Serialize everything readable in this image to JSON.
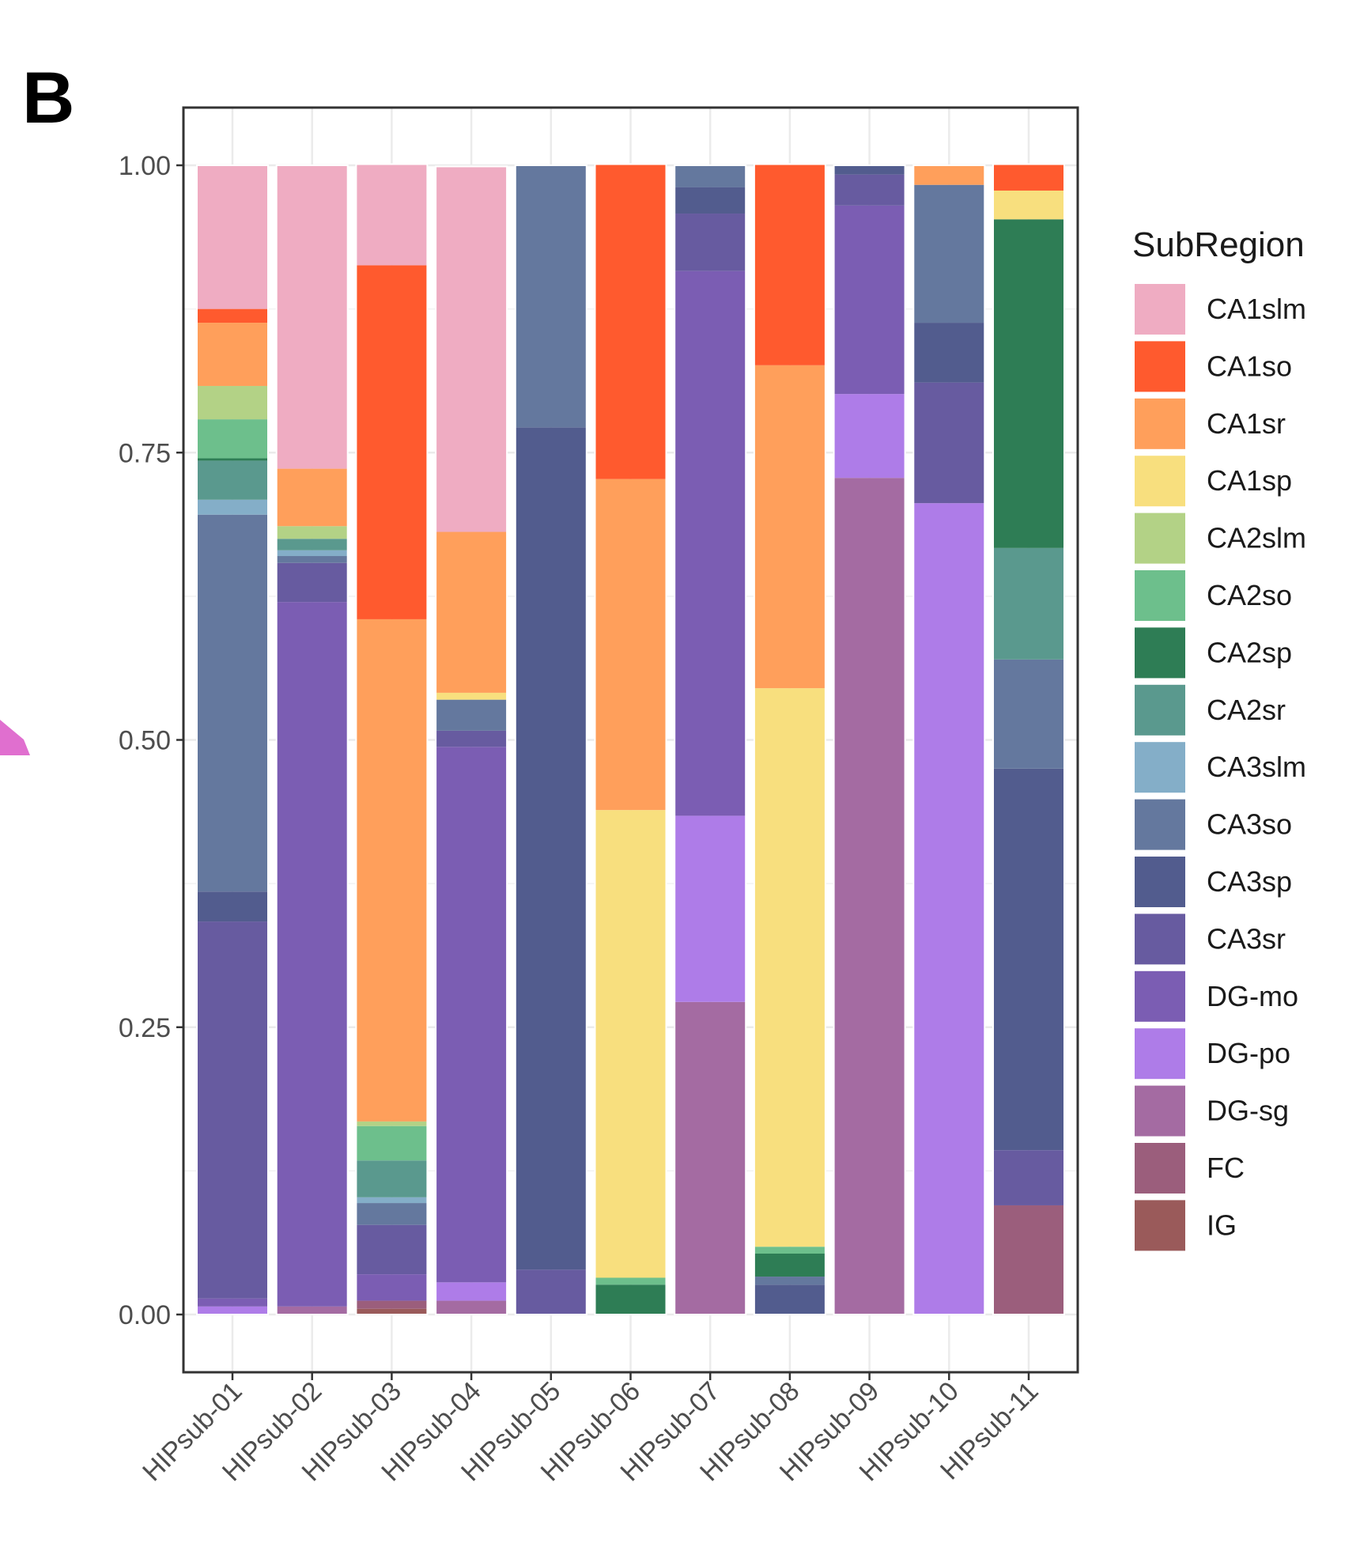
{
  "panel_label": "B",
  "chart_data": {
    "type": "bar",
    "stacked": true,
    "title": "",
    "xlabel": "",
    "ylabel": "",
    "ylim": [
      0,
      1
    ],
    "yticks": [
      "0.00",
      "0.25",
      "0.50",
      "0.75",
      "1.00"
    ],
    "ytick_values": [
      0,
      0.25,
      0.5,
      0.75,
      1.0
    ],
    "grid": true,
    "legend_title": "SubRegion",
    "legend_position": "right",
    "categories": [
      "HIPsub-01",
      "HIPsub-02",
      "HIPsub-03",
      "HIPsub-04",
      "HIPsub-05",
      "HIPsub-06",
      "HIPsub-07",
      "HIPsub-08",
      "HIPsub-09",
      "HIPsub-10",
      "HIPsub-11"
    ],
    "series": [
      {
        "name": "CA1slm",
        "color": "#EFACC2",
        "values": [
          0.125,
          0.264,
          0.088,
          0.318,
          0,
          0,
          0,
          0,
          0,
          0,
          0
        ]
      },
      {
        "name": "CA1so",
        "color": "#FF5A2E",
        "values": [
          0.012,
          0,
          0.308,
          0,
          0,
          0.274,
          0,
          0.175,
          0,
          0,
          0.023
        ]
      },
      {
        "name": "CA1sr",
        "color": "#FF9F5B",
        "values": [
          0.055,
          0.05,
          0.437,
          0.14,
          0,
          0.288,
          0,
          0.281,
          0,
          0.017,
          0
        ]
      },
      {
        "name": "CA1sp",
        "color": "#F8DF7E",
        "values": [
          0,
          0,
          0,
          0.006,
          0,
          0.407,
          0,
          0.486,
          0,
          0,
          0.025
        ]
      },
      {
        "name": "CA2slm",
        "color": "#B3D286",
        "values": [
          0.029,
          0.011,
          0.004,
          0,
          0,
          0,
          0,
          0,
          0,
          0,
          0
        ]
      },
      {
        "name": "CA2so",
        "color": "#6DBF8C",
        "values": [
          0.034,
          0,
          0.03,
          0,
          0,
          0.006,
          0,
          0.006,
          0,
          0,
          0
        ]
      },
      {
        "name": "CA2sp",
        "color": "#2E7D55",
        "values": [
          0.002,
          0,
          0,
          0,
          0,
          0.026,
          0,
          0.02,
          0,
          0,
          0.286
        ]
      },
      {
        "name": "CA2sr",
        "color": "#5A998E",
        "values": [
          0.034,
          0.01,
          0.032,
          0,
          0,
          0,
          0,
          0,
          0,
          0,
          0.097
        ]
      },
      {
        "name": "CA3slm",
        "color": "#84AEC8",
        "values": [
          0.013,
          0.005,
          0.005,
          0,
          0,
          0,
          0,
          0,
          0,
          0,
          0
        ]
      },
      {
        "name": "CA3so",
        "color": "#64789E",
        "values": [
          0.328,
          0.006,
          0.019,
          0.027,
          0.228,
          0,
          0.019,
          0.007,
          0,
          0.12,
          0.095
        ]
      },
      {
        "name": "CA3sp",
        "color": "#525C8E",
        "values": [
          0.026,
          0,
          0,
          0,
          0.733,
          0,
          0.023,
          0.026,
          0.008,
          0.052,
          0.332
        ]
      },
      {
        "name": "CA3sr",
        "color": "#675BA0",
        "values": [
          0.328,
          0.034,
          0.043,
          0.014,
          0.039,
          0,
          0.05,
          0,
          0.027,
          0.105,
          0.048
        ]
      },
      {
        "name": "DG-mo",
        "color": "#7B5DB3",
        "values": [
          0.007,
          0.613,
          0.023,
          0.466,
          0,
          0,
          0.474,
          0,
          0.164,
          0,
          0
        ]
      },
      {
        "name": "DG-po",
        "color": "#AE7CE8",
        "values": [
          0.007,
          0,
          0,
          0.016,
          0,
          0,
          0.162,
          0,
          0.073,
          0.706,
          0
        ]
      },
      {
        "name": "DG-sg",
        "color": "#A46BA2",
        "values": [
          0,
          0.007,
          0,
          0.012,
          0,
          0,
          0.272,
          0,
          0.728,
          0,
          0
        ]
      },
      {
        "name": "FC",
        "color": "#9B5E7C",
        "values": [
          0,
          0,
          0.007,
          0,
          0,
          0,
          0,
          0,
          0,
          0,
          0.095
        ]
      },
      {
        "name": "IG",
        "color": "#9A5A5A",
        "values": [
          0,
          0,
          0.005,
          0,
          0,
          0,
          0,
          0,
          0,
          0,
          0
        ]
      }
    ]
  }
}
